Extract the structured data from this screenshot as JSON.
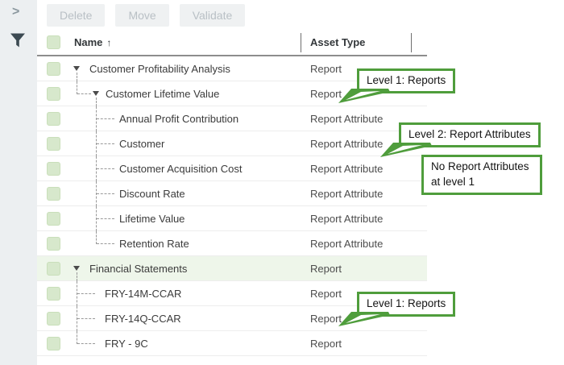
{
  "sidebar": {
    "collapse_icon": ">",
    "filter_icon": "funnel"
  },
  "toolbar": {
    "buttons": [
      {
        "label": "Delete"
      },
      {
        "label": "Move"
      },
      {
        "label": "Validate"
      }
    ]
  },
  "table": {
    "header": {
      "name_label": "Name",
      "sort_indicator": "↑",
      "asset_type_label": "Asset Type"
    },
    "rows": [
      {
        "name": "Customer Profitability Analysis",
        "asset_type": "Report",
        "level": 0,
        "kind": "l0",
        "expanded": true,
        "selected": false
      },
      {
        "name": "Customer Lifetime Value",
        "asset_type": "Report",
        "level": 1,
        "kind": "l1e",
        "expanded": true,
        "selected": false
      },
      {
        "name": "Annual Profit Contribution",
        "asset_type": "Report Attribute",
        "level": 2,
        "kind": "l2",
        "selected": false
      },
      {
        "name": "Customer",
        "asset_type": "Report Attribute",
        "level": 2,
        "kind": "l2",
        "selected": false
      },
      {
        "name": "Customer Acquisition Cost",
        "asset_type": "Report Attribute",
        "level": 2,
        "kind": "l2",
        "selected": false
      },
      {
        "name": "Discount Rate",
        "asset_type": "Report Attribute",
        "level": 2,
        "kind": "l2",
        "selected": false
      },
      {
        "name": "Lifetime Value",
        "asset_type": "Report Attribute",
        "level": 2,
        "kind": "l2",
        "selected": false
      },
      {
        "name": "Retention Rate",
        "asset_type": "Report Attribute",
        "level": 2,
        "kind": "l2",
        "last": true,
        "selected": false
      },
      {
        "name": "Financial Statements",
        "asset_type": "Report",
        "level": 0,
        "kind": "l0",
        "expanded": true,
        "selected": true
      },
      {
        "name": "FRY-14M-CCAR",
        "asset_type": "Report",
        "level": 1,
        "kind": "l1f",
        "selected": false
      },
      {
        "name": "FRY-14Q-CCAR",
        "asset_type": "Report",
        "level": 1,
        "kind": "l1f",
        "selected": false
      },
      {
        "name": "FRY - 9C",
        "asset_type": "Report",
        "level": 1,
        "kind": "l1f",
        "last": true,
        "selected": false
      }
    ]
  },
  "callouts": [
    {
      "text": "Level 1: Reports",
      "has_tail": true
    },
    {
      "text": "Level 2: Report Attributes",
      "has_tail": true
    },
    {
      "text": "No Report Attributes at level 1",
      "has_tail": false
    },
    {
      "text": "Level 1: Reports",
      "has_tail": true
    }
  ],
  "colors": {
    "callout_green": "#4f9d3c",
    "checkbox_green": "#d7e8cc",
    "selected_row_bg": "#eef6ea",
    "sidebar_bg": "#eceff1"
  }
}
